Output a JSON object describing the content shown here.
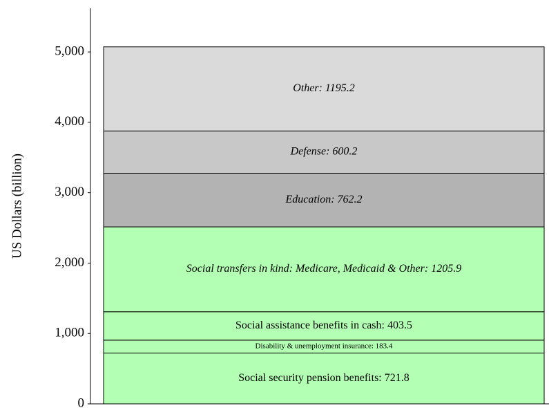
{
  "chart_data": {
    "type": "stacked_bar",
    "y_label": "US Dollars (billion)",
    "categories": [
      null
    ],
    "series": [
      {
        "color": "#b3ffb3",
        "values": [
          721.8
        ],
        "value_labels": [
          "Social security pension benefits: 721.8"
        ]
      },
      {
        "color": "#b3ffb3",
        "values": [
          183.4
        ],
        "value_labels": [
          "Disability & unemployment insurance: 183.4"
        ]
      },
      {
        "color": "#b3ffb3",
        "values": [
          403.5
        ],
        "value_labels": [
          "Social assistance benefits in cash: 403.5"
        ]
      },
      {
        "color": "#b3ffb3",
        "values": [
          1205.9
        ],
        "value_labels": [
          "Social transfers in kind: Medicare, Medicaid & Other: 1205.9"
        ]
      },
      {
        "color": "#b3b3b3",
        "values": [
          762.2
        ],
        "value_labels": [
          "Education: 762.2"
        ]
      },
      {
        "color": "#c8c8c8",
        "values": [
          600.2
        ],
        "value_labels": [
          "Defense: 600.2"
        ]
      },
      {
        "color": "#dadada",
        "values": [
          1195.2
        ],
        "value_labels": [
          "Other: 1195.2"
        ]
      }
    ],
    "ylim": [
      0,
      5620
    ],
    "yticks": [
      0,
      {
        "value": 1000,
        "label": "1,000"
      },
      {
        "value": 2000,
        "label": "2,000"
      },
      {
        "value": 3000,
        "label": "3,000"
      },
      {
        "value": 4000,
        "label": "4,000"
      },
      {
        "value": 5000,
        "label": "5,000"
      }
    ],
    "grid": false
  }
}
